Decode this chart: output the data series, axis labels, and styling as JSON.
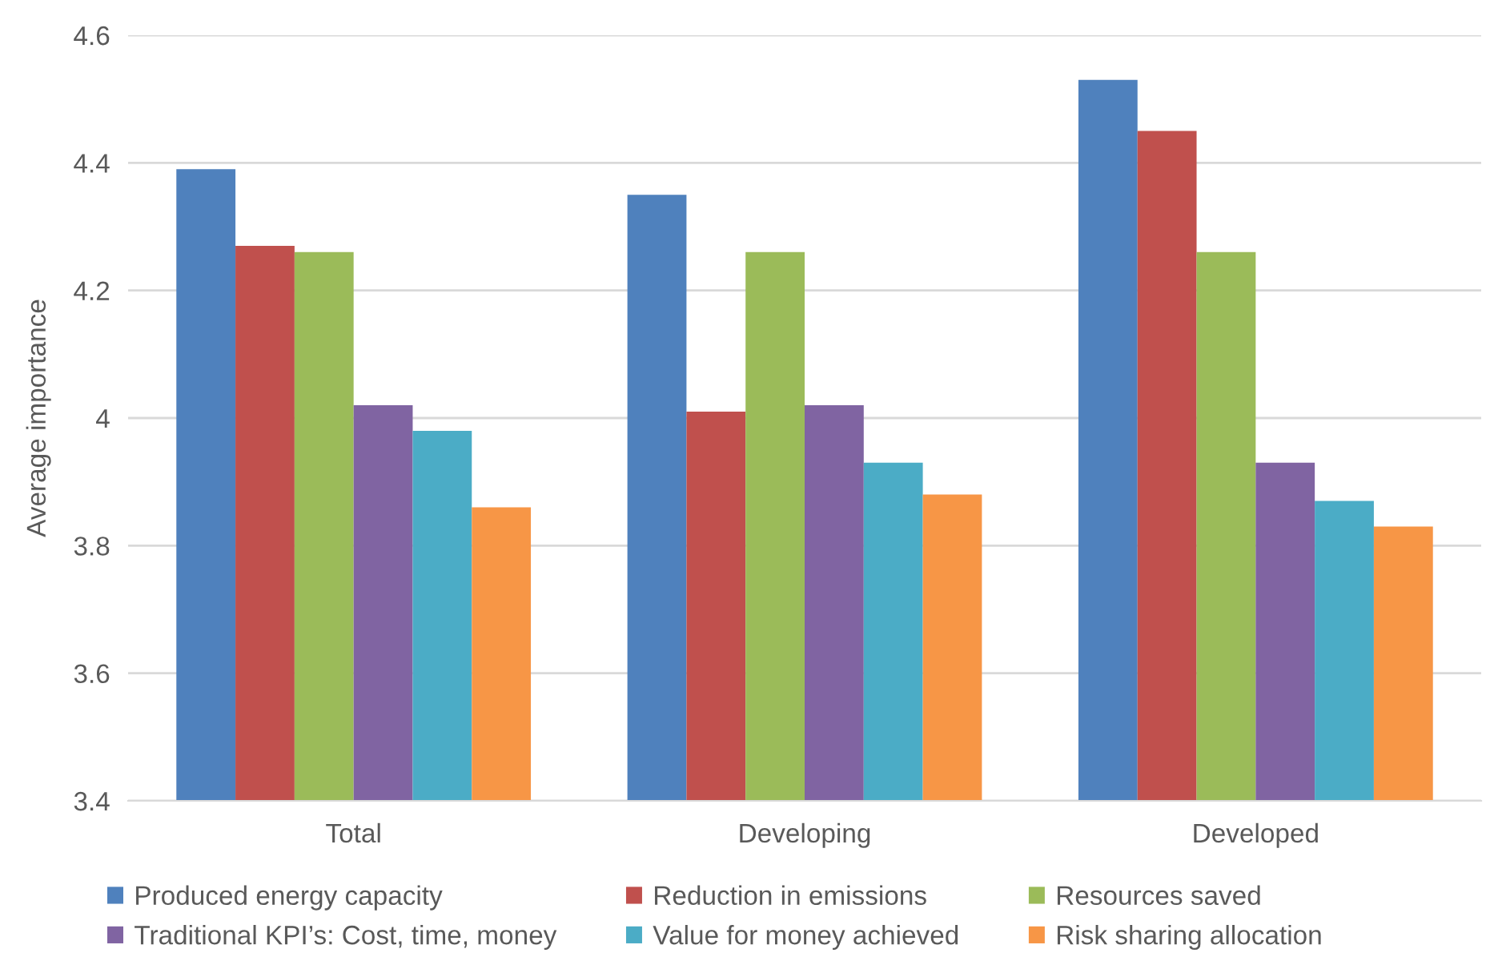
{
  "chart_data": {
    "type": "bar",
    "ylabel": "Average importance",
    "categories": [
      "Total",
      "Developing",
      "Developed"
    ],
    "series": [
      {
        "name": "Produced energy capacity",
        "color": "#4f81bd",
        "values": [
          4.39,
          4.35,
          4.53
        ]
      },
      {
        "name": "Reduction in emissions",
        "color": "#c0504d",
        "values": [
          4.27,
          4.01,
          4.45
        ]
      },
      {
        "name": "Resources saved",
        "color": "#9bbb59",
        "values": [
          4.26,
          4.26,
          4.26
        ]
      },
      {
        "name": "Traditional KPI’s: Cost, time, money",
        "color": "#8064a2",
        "values": [
          4.02,
          4.02,
          3.93
        ]
      },
      {
        "name": "Value for money achieved",
        "color": "#4bacc6",
        "values": [
          3.98,
          3.93,
          3.87
        ]
      },
      {
        "name": "Risk sharing allocation",
        "color": "#f79646",
        "values": [
          3.86,
          3.88,
          3.83
        ]
      }
    ],
    "ylim": [
      3.4,
      4.6
    ],
    "yticks": [
      3.4,
      3.6,
      3.8,
      4,
      4.2,
      4.4,
      4.6
    ],
    "grid": "y",
    "legend": "bottom"
  }
}
